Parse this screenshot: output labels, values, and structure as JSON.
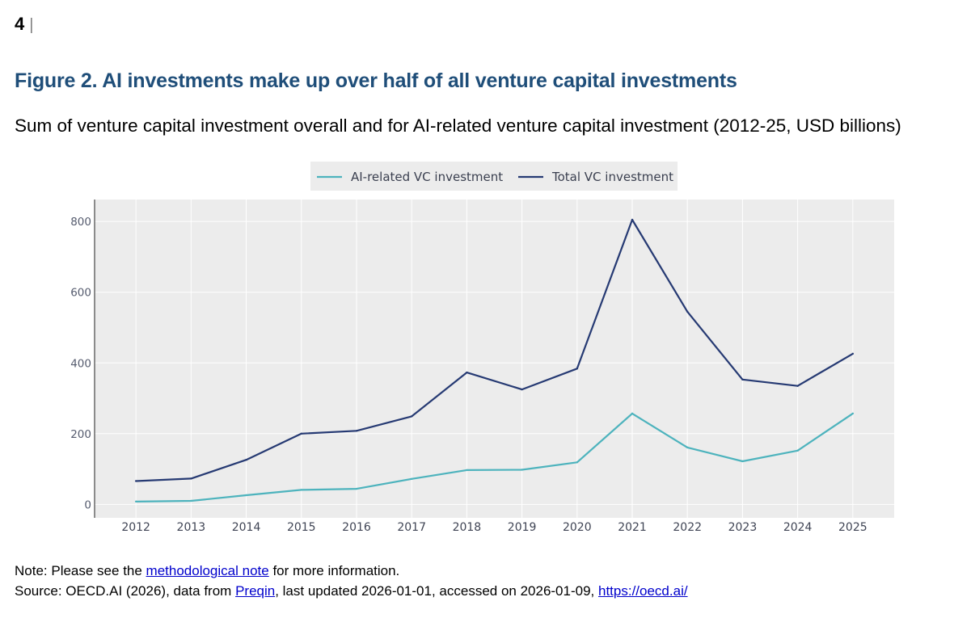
{
  "page": {
    "number": "4",
    "separator": "|"
  },
  "figure": {
    "title": "Figure 2. AI investments make up over half of all venture capital investments",
    "subtitle": "Sum of venture capital investment overall and for AI-related venture capital investment (2012-25, USD billions)"
  },
  "chart_data": {
    "type": "line",
    "title": "",
    "xlabel": "",
    "ylabel": "",
    "x": [
      2012,
      2013,
      2014,
      2015,
      2016,
      2017,
      2018,
      2019,
      2020,
      2021,
      2022,
      2023,
      2024,
      2025
    ],
    "x_tick_labels": [
      "2012",
      "2013",
      "2014",
      "2015",
      "2016",
      "2017",
      "2018",
      "2019",
      "2020",
      "2021",
      "2022",
      "2023",
      "2024",
      "2025"
    ],
    "y_ticks": [
      0,
      200,
      400,
      600,
      800
    ],
    "y_tick_labels": [
      "0",
      "200",
      "400",
      "600",
      "800"
    ],
    "ylim": [
      -38,
      862
    ],
    "grid": true,
    "legend_position": "top-center",
    "series": [
      {
        "name": "AI-related VC investment",
        "color": "#4db3bd",
        "values": [
          8,
          10,
          26,
          41,
          44,
          72,
          97,
          98,
          119,
          257,
          161,
          122,
          152,
          257
        ]
      },
      {
        "name": "Total VC investment",
        "color": "#263a73",
        "values": [
          66,
          73,
          126,
          200,
          208,
          249,
          373,
          325,
          384,
          805,
          545,
          353,
          335,
          426
        ]
      }
    ]
  },
  "footer": {
    "note_prefix": "Note: Please see the ",
    "note_link": "methodological note",
    "note_suffix": " for more information.",
    "source_prefix": "Source: OECD.AI (2026), data from ",
    "source_link": "Preqin",
    "source_middle": ", last updated 2026-01-01, accessed on 2026-01-09, ",
    "source_url": "https://oecd.ai/"
  }
}
